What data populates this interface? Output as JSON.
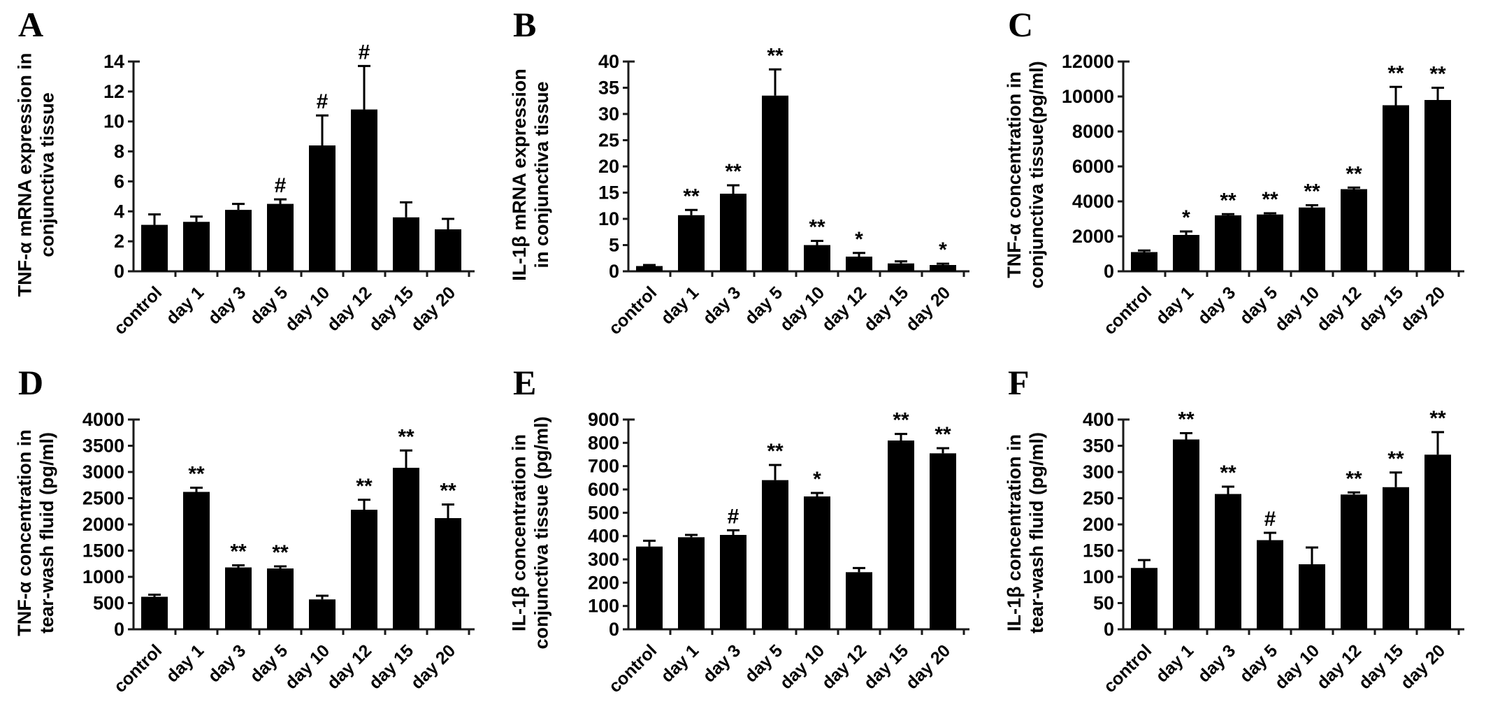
{
  "figure": {
    "background_color": "#ffffff",
    "bar_color": "#000000",
    "axis_color": "#1a1a1a"
  },
  "chart_data": [
    {
      "panel": "A",
      "type": "bar",
      "ylabel": "TNF-α mRNA expression in conjunctiva tissue",
      "ylabel_lines": [
        "TNF-α mRNA expression in",
        "conjunctiva tissue"
      ],
      "xlabel": "",
      "ylim": [
        0,
        14
      ],
      "ytick_step": 2,
      "categories": [
        "control",
        "day 1",
        "day 3",
        "day 5",
        "day 10",
        "day 12",
        "day 15",
        "day 20"
      ],
      "values": [
        3.1,
        3.3,
        4.1,
        4.5,
        8.4,
        10.8,
        3.6,
        2.8
      ],
      "errors": [
        0.7,
        0.35,
        0.4,
        0.3,
        2.0,
        2.9,
        1.0,
        0.7
      ],
      "sig": [
        "",
        "",
        "",
        "#",
        "#",
        "#",
        "",
        ""
      ]
    },
    {
      "panel": "B",
      "type": "bar",
      "ylabel": "IL-1β mRNA expression in conjunctiva tissue",
      "ylabel_lines": [
        "IL-1β mRNA expression",
        "in conjunctiva tissue"
      ],
      "xlabel": "",
      "ylim": [
        0,
        40
      ],
      "ytick_step": 5,
      "categories": [
        "control",
        "day 1",
        "day 3",
        "day 5",
        "day 10",
        "day 12",
        "day 15",
        "day 20"
      ],
      "values": [
        1.0,
        10.7,
        14.8,
        33.5,
        5.0,
        2.8,
        1.5,
        1.2
      ],
      "errors": [
        0.2,
        1.0,
        1.6,
        5.0,
        0.8,
        0.7,
        0.4,
        0.25
      ],
      "sig": [
        "",
        "**",
        "**",
        "**",
        "**",
        "*",
        "",
        "*"
      ]
    },
    {
      "panel": "C",
      "type": "bar",
      "ylabel": "TNF-α concentration in conjunctiva tissue(pg/ml)",
      "ylabel_lines": [
        "TNF-α concentration in",
        "conjunctiva tissue(pg/ml)"
      ],
      "xlabel": "",
      "ylim": [
        0,
        12000
      ],
      "ytick_step": 2000,
      "categories": [
        "control",
        "day 1",
        "day 3",
        "day 5",
        "day 10",
        "day 12",
        "day 15",
        "day 20"
      ],
      "values": [
        1100,
        2080,
        3200,
        3250,
        3650,
        4700,
        9500,
        9800
      ],
      "errors": [
        90,
        200,
        70,
        70,
        130,
        90,
        1050,
        700
      ],
      "sig": [
        "",
        "*",
        "**",
        "**",
        "**",
        "**",
        "**",
        "**"
      ]
    },
    {
      "panel": "D",
      "type": "bar",
      "ylabel": "TNF-α concentration in tear-wash fluid (pg/ml)",
      "ylabel_lines": [
        "TNF-α concentration in",
        "tear-wash fluid (pg/ml)"
      ],
      "xlabel": "",
      "ylim": [
        0,
        4000
      ],
      "ytick_step": 500,
      "categories": [
        "control",
        "day 1",
        "day 3",
        "day 5",
        "day 10",
        "day 12",
        "day 15",
        "day 20"
      ],
      "values": [
        620,
        2620,
        1180,
        1160,
        570,
        2280,
        3080,
        2120
      ],
      "errors": [
        40,
        80,
        40,
        40,
        70,
        190,
        330,
        260
      ],
      "sig": [
        "",
        "**",
        "**",
        "**",
        "",
        "**",
        "**",
        "**"
      ]
    },
    {
      "panel": "E",
      "type": "bar",
      "ylabel": "IL-1β concentration in conjunctiva tissue (pg/ml)",
      "ylabel_lines": [
        "IL-1β concentration in",
        "conjunctiva tissue (pg/ml)"
      ],
      "xlabel": "",
      "ylim": [
        0,
        900
      ],
      "ytick_step": 100,
      "categories": [
        "control",
        "day 1",
        "day 3",
        "day 5",
        "day 10",
        "day 12",
        "day 15",
        "day 20"
      ],
      "values": [
        355,
        395,
        405,
        640,
        570,
        245,
        810,
        755
      ],
      "errors": [
        25,
        10,
        20,
        65,
        15,
        18,
        28,
        22
      ],
      "sig": [
        "",
        "",
        "#",
        "**",
        "*",
        "",
        "**",
        "**"
      ]
    },
    {
      "panel": "F",
      "type": "bar",
      "ylabel": "IL-1β concentration in tear-wash fluid (pg/ml)",
      "ylabel_lines": [
        "IL-1β concentration in",
        "tear-wash fluid (pg/ml)"
      ],
      "xlabel": "",
      "ylim": [
        0,
        400
      ],
      "ytick_step": 50,
      "categories": [
        "control",
        "day 1",
        "day 3",
        "day 5",
        "day 10",
        "day 12",
        "day 15",
        "day 20"
      ],
      "values": [
        117,
        362,
        258,
        170,
        124,
        257,
        271,
        333
      ],
      "errors": [
        15,
        12,
        14,
        14,
        32,
        4,
        28,
        43
      ],
      "sig": [
        "",
        "**",
        "**",
        "#",
        "",
        "**",
        "**",
        "**"
      ]
    }
  ]
}
